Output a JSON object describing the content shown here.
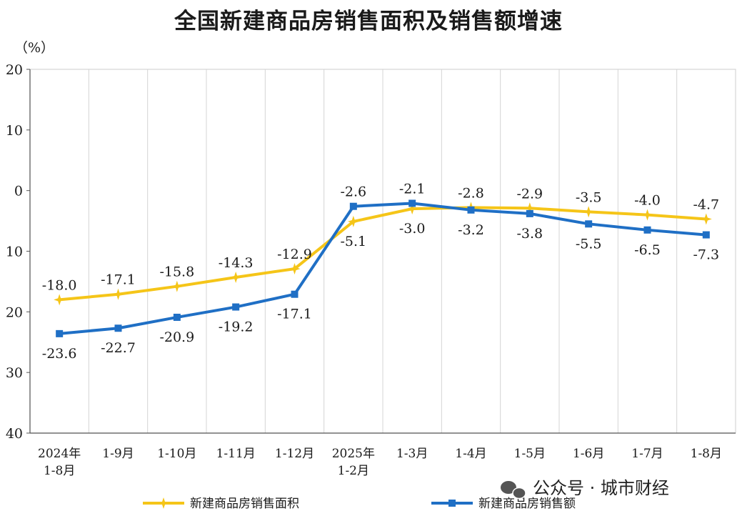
{
  "title": "全国新建商品房销售面积及销售额增速",
  "watermark": "公众号 · 城市财经",
  "colors": {
    "area": "#F5C518",
    "sales": "#1F6FC5",
    "grid": "#d4d4d4",
    "axis": "#555555"
  },
  "chart_data": {
    "type": "line",
    "title": "全国新建商品房销售面积及销售额增速",
    "ylabel": "（%）",
    "ylim": [
      -40,
      20
    ],
    "yticks": [
      20,
      10,
      0,
      -10,
      -20,
      -30,
      -40
    ],
    "ytick_labels": [
      "20",
      "10",
      "0",
      "10",
      "20",
      "30",
      "40"
    ],
    "categories": [
      [
        "2024年",
        "1-8月"
      ],
      [
        "1-9月"
      ],
      [
        "1-10月"
      ],
      [
        "1-11月"
      ],
      [
        "1-12月"
      ],
      [
        "2025年",
        "1-2月"
      ],
      [
        "1-3月"
      ],
      [
        "1-4月"
      ],
      [
        "1-5月"
      ],
      [
        "1-6月"
      ],
      [
        "1-7月"
      ],
      [
        "1-8月"
      ]
    ],
    "grid": "vertical",
    "legend_position": "bottom",
    "series": [
      {
        "name": "新建商品房销售面积",
        "color": "#F5C518",
        "marker": "star",
        "values": [
          -18.0,
          -17.1,
          -15.8,
          -14.3,
          -12.9,
          -5.1,
          -3.0,
          -2.8,
          -2.9,
          -3.5,
          -4.0,
          -4.7
        ],
        "labels": [
          "-18.0",
          "-17.1",
          "-15.8",
          "-14.3",
          "-12.9",
          "-5.1",
          "-3.0",
          "-2.8",
          "-2.9",
          "-3.5",
          "-4.0",
          "-4.7"
        ],
        "label_side": [
          "above",
          "above",
          "above",
          "above",
          "above",
          "below",
          "below",
          "above",
          "above",
          "above",
          "above",
          "above"
        ]
      },
      {
        "name": "新建商品房销售额",
        "color": "#1F6FC5",
        "marker": "square",
        "values": [
          -23.6,
          -22.7,
          -20.9,
          -19.2,
          -17.1,
          -2.6,
          -2.1,
          -3.2,
          -3.8,
          -5.5,
          -6.5,
          -7.3
        ],
        "labels": [
          "-23.6",
          "-22.7",
          "-20.9",
          "-19.2",
          "-17.1",
          "-2.6",
          "-2.1",
          "-3.2",
          "-3.8",
          "-5.5",
          "-6.5",
          "-7.3"
        ],
        "label_side": [
          "below",
          "below",
          "below",
          "below",
          "below",
          "above",
          "above",
          "below",
          "below",
          "below",
          "below",
          "below"
        ]
      }
    ]
  }
}
